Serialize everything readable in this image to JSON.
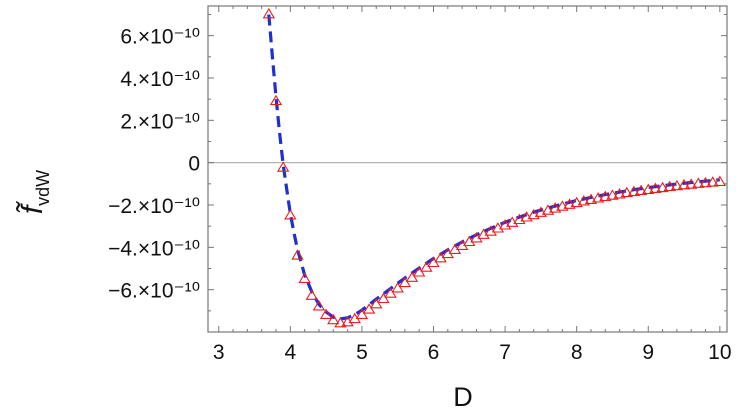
{
  "chart_data": {
    "type": "scatter",
    "xlabel": "D",
    "ylabel": "f̃",
    "ylabel_subscript": "vdW",
    "xlim": [
      2.85,
      10.1
    ],
    "ylim": [
      -8e-10,
      7.4e-10
    ],
    "x_ticks": [
      3,
      4,
      5,
      6,
      7,
      8,
      9,
      10
    ],
    "x_tick_labels": [
      "3",
      "4",
      "5",
      "6",
      "7",
      "8",
      "9",
      "10"
    ],
    "y_ticks": [
      6e-10,
      4e-10,
      2e-10,
      0,
      -2e-10,
      -4e-10,
      -6e-10
    ],
    "y_tick_labels": [
      "6.×10⁻¹⁰",
      "4.×10⁻¹⁰",
      "2.×10⁻¹⁰",
      "0",
      "−2.×10⁻¹⁰",
      "−4.×10⁻¹⁰",
      "−6.×10⁻¹⁰"
    ],
    "grid": false,
    "zero_line": true,
    "series": [
      {
        "style": "markers",
        "marker": "triangle-open",
        "color": "#ee1c1c",
        "points": [
          [
            3.7,
            7e-10
          ],
          [
            3.8,
            2.9e-10
          ],
          [
            3.9,
            -2.5e-11
          ],
          [
            4.0,
            -2.5e-10
          ],
          [
            4.1,
            -4.4e-10
          ],
          [
            4.2,
            -5.5e-10
          ],
          [
            4.3,
            -6.3e-10
          ],
          [
            4.4,
            -6.8e-10
          ],
          [
            4.5,
            -7.2e-10
          ],
          [
            4.6,
            -7.45e-10
          ],
          [
            4.7,
            -7.6e-10
          ],
          [
            4.8,
            -7.55e-10
          ],
          [
            4.9,
            -7.4e-10
          ],
          [
            5.0,
            -7.2e-10
          ],
          [
            5.1,
            -6.95e-10
          ],
          [
            5.2,
            -6.7e-10
          ],
          [
            5.3,
            -6.45e-10
          ],
          [
            5.4,
            -6.2e-10
          ],
          [
            5.5,
            -5.95e-10
          ],
          [
            5.6,
            -5.7e-10
          ],
          [
            5.7,
            -5.45e-10
          ],
          [
            5.8,
            -5.2e-10
          ],
          [
            5.9,
            -4.97e-10
          ],
          [
            6.0,
            -4.75e-10
          ],
          [
            6.1,
            -4.53e-10
          ],
          [
            6.2,
            -4.33e-10
          ],
          [
            6.3,
            -4.13e-10
          ],
          [
            6.4,
            -3.94e-10
          ],
          [
            6.5,
            -3.76e-10
          ],
          [
            6.6,
            -3.59e-10
          ],
          [
            6.7,
            -3.42e-10
          ],
          [
            6.8,
            -3.27e-10
          ],
          [
            6.9,
            -3.12e-10
          ],
          [
            7.0,
            -2.98e-10
          ],
          [
            7.1,
            -2.85e-10
          ],
          [
            7.2,
            -2.72e-10
          ],
          [
            7.3,
            -2.6e-10
          ],
          [
            7.4,
            -2.49e-10
          ],
          [
            7.5,
            -2.38e-10
          ],
          [
            7.6,
            -2.28e-10
          ],
          [
            7.7,
            -2.18e-10
          ],
          [
            7.8,
            -2.09e-10
          ],
          [
            7.9,
            -2e-10
          ],
          [
            8.0,
            -1.92e-10
          ],
          [
            8.1,
            -1.84e-10
          ],
          [
            8.2,
            -1.77e-10
          ],
          [
            8.3,
            -1.7e-10
          ],
          [
            8.4,
            -1.63e-10
          ],
          [
            8.5,
            -1.57e-10
          ],
          [
            8.6,
            -1.51e-10
          ],
          [
            8.7,
            -1.45e-10
          ],
          [
            8.8,
            -1.4e-10
          ],
          [
            8.9,
            -1.35e-10
          ],
          [
            9.0,
            -1.3e-10
          ],
          [
            9.1,
            -1.25e-10
          ],
          [
            9.2,
            -1.21e-10
          ],
          [
            9.3,
            -1.16e-10
          ],
          [
            9.4,
            -1.12e-10
          ],
          [
            9.5,
            -1.08e-10
          ],
          [
            9.6,
            -1.05e-10
          ],
          [
            9.7,
            -1.01e-10
          ],
          [
            9.8,
            -9.8e-11
          ],
          [
            9.9,
            -9.5e-11
          ],
          [
            10.0,
            -9.2e-11
          ]
        ]
      },
      {
        "style": "dashed-line",
        "color": "#1f2fd1",
        "points": [
          [
            3.7,
            7e-10
          ],
          [
            3.75,
            5e-10
          ],
          [
            3.8,
            3.1e-10
          ],
          [
            3.85,
            1.4e-10
          ],
          [
            3.9,
            -1e-11
          ],
          [
            3.95,
            -1.25e-10
          ],
          [
            4.0,
            -2.4e-10
          ],
          [
            4.05,
            -3.3e-10
          ],
          [
            4.1,
            -4.1e-10
          ],
          [
            4.2,
            -5.3e-10
          ],
          [
            4.3,
            -6.1e-10
          ],
          [
            4.4,
            -6.7e-10
          ],
          [
            4.5,
            -7.05e-10
          ],
          [
            4.6,
            -7.3e-10
          ],
          [
            4.7,
            -7.38e-10
          ],
          [
            4.8,
            -7.33e-10
          ],
          [
            4.9,
            -7.18e-10
          ],
          [
            5.0,
            -6.97e-10
          ],
          [
            5.2,
            -6.45e-10
          ],
          [
            5.4,
            -5.95e-10
          ],
          [
            5.6,
            -5.45e-10
          ],
          [
            5.8,
            -4.98e-10
          ],
          [
            6.0,
            -4.53e-10
          ],
          [
            6.2,
            -4.12e-10
          ],
          [
            6.4,
            -3.75e-10
          ],
          [
            6.6,
            -3.41e-10
          ],
          [
            6.8,
            -3.1e-10
          ],
          [
            7.0,
            -2.82e-10
          ],
          [
            7.2,
            -2.57e-10
          ],
          [
            7.4,
            -2.34e-10
          ],
          [
            7.6,
            -2.14e-10
          ],
          [
            7.8,
            -1.96e-10
          ],
          [
            8.0,
            -1.79e-10
          ],
          [
            8.2,
            -1.64e-10
          ],
          [
            8.4,
            -1.51e-10
          ],
          [
            8.6,
            -1.39e-10
          ],
          [
            8.8,
            -1.28e-10
          ],
          [
            9.0,
            -1.18e-10
          ],
          [
            9.2,
            -1.09e-10
          ],
          [
            9.4,
            -1.01e-10
          ],
          [
            9.6,
            -9.4e-11
          ],
          [
            9.8,
            -8.7e-11
          ],
          [
            10.0,
            -8.1e-11
          ]
        ]
      }
    ]
  }
}
